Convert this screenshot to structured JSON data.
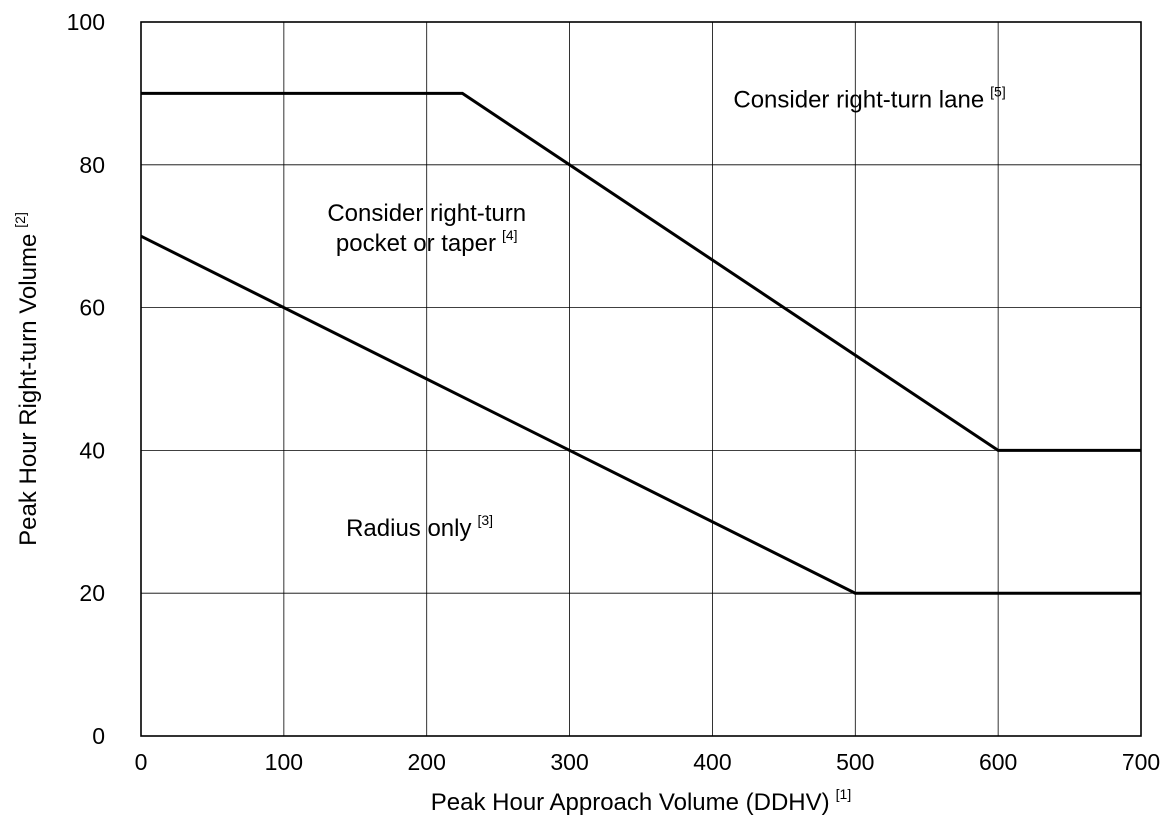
{
  "chart_data": {
    "type": "line",
    "xlabel": "Peak Hour Approach Volume (DDHV)",
    "xlabel_ref": "[1]",
    "ylabel": "Peak Hour Right-turn Volume",
    "ylabel_ref": "[2]",
    "xlim": [
      0,
      700
    ],
    "ylim": [
      0,
      100
    ],
    "xticks": [
      0,
      100,
      200,
      300,
      400,
      500,
      600,
      700
    ],
    "yticks": [
      0,
      20,
      40,
      60,
      80,
      100
    ],
    "grid": true,
    "legend": "none",
    "series": [
      {
        "x": [
          0,
          500,
          700
        ],
        "y": [
          70,
          20,
          20
        ]
      },
      {
        "x": [
          0,
          225,
          600,
          700
        ],
        "y": [
          90,
          90,
          40,
          40
        ]
      }
    ],
    "annotations": [
      {
        "lines": [
          "Radius only"
        ],
        "ref": "[3]",
        "x": 195,
        "y": 28
      },
      {
        "lines": [
          "Consider right-turn",
          "pocket or taper"
        ],
        "ref": "[4]",
        "x": 200,
        "y": 70
      },
      {
        "lines": [
          "Consider right-turn lane"
        ],
        "ref": "[5]",
        "x": 510,
        "y": 88
      }
    ],
    "colors": {
      "line": "#000000",
      "grid": "#000000",
      "background": "#ffffff"
    }
  }
}
